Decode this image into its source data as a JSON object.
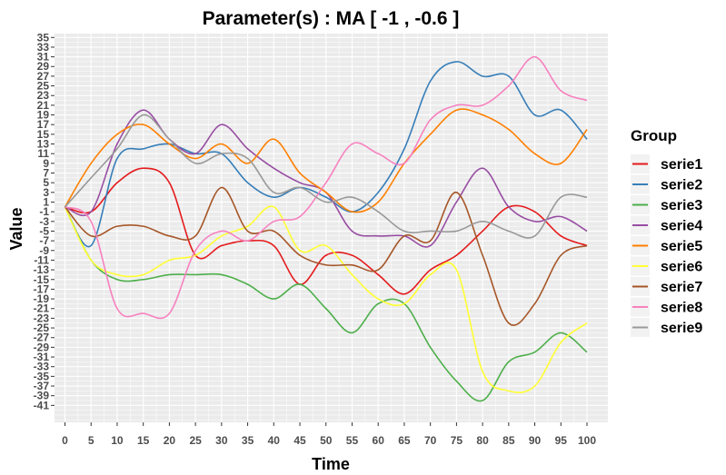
{
  "chart_data": {
    "type": "line",
    "title": "Parameter(s) :  MA [ -1 , -0.6 ]",
    "xlabel": "Time",
    "ylabel": "Value",
    "xlim": [
      -2,
      104
    ],
    "ylim": [
      -44.5,
      35.8
    ],
    "x_ticks": [
      0,
      5,
      10,
      15,
      20,
      25,
      30,
      35,
      40,
      45,
      50,
      55,
      60,
      65,
      70,
      75,
      80,
      85,
      90,
      95,
      100
    ],
    "y_ticks": [
      35,
      33,
      31,
      29,
      27,
      25,
      23,
      21,
      19,
      17,
      15,
      13,
      11,
      9,
      7,
      5,
      3,
      1,
      -1,
      -3,
      -5,
      -7,
      -9,
      -11,
      -13,
      -15,
      -17,
      -19,
      -21,
      -23,
      -25,
      -27,
      -29,
      -31,
      -33,
      -35,
      -37,
      -39,
      -41
    ],
    "grid": true,
    "legend": {
      "title": "Group",
      "position": "right"
    },
    "x": [
      0,
      5,
      10,
      15,
      20,
      25,
      30,
      35,
      40,
      45,
      50,
      55,
      60,
      65,
      70,
      75,
      80,
      85,
      90,
      95,
      100
    ],
    "series": [
      {
        "name": "serie1",
        "color": "#e41a1c",
        "values": [
          0,
          -1,
          5,
          8,
          5,
          -10,
          -8,
          -7,
          -8,
          -16,
          -10,
          -10,
          -14,
          -18,
          -13,
          -10,
          -5,
          0,
          -1,
          -6,
          -8
        ]
      },
      {
        "name": "serie2",
        "color": "#377eb8",
        "values": [
          0,
          -8,
          10,
          12,
          13,
          11,
          11,
          5,
          2,
          4,
          2,
          -1,
          3,
          12,
          26,
          30,
          27,
          27,
          19,
          20,
          14
        ]
      },
      {
        "name": "serie3",
        "color": "#4daf4a",
        "values": [
          0,
          -11,
          -15,
          -15,
          -14,
          -14,
          -14,
          -16,
          -19,
          -16,
          -21,
          -26,
          -20,
          -20,
          -29,
          -36,
          -40,
          -32,
          -30,
          -26,
          -30
        ]
      },
      {
        "name": "serie4",
        "color": "#984ea3",
        "values": [
          0,
          -1,
          13,
          20,
          14,
          11,
          17,
          12,
          8,
          5,
          3,
          -5,
          -6,
          -6,
          -8,
          1,
          8,
          0,
          -3,
          -2,
          -5
        ]
      },
      {
        "name": "serie5",
        "color": "#ff7f00",
        "values": [
          0,
          9,
          15,
          17,
          13,
          10,
          13,
          9,
          14,
          7,
          3,
          -1,
          1,
          9,
          15,
          20,
          19,
          16,
          11,
          9,
          16
        ]
      },
      {
        "name": "serie6",
        "color": "#ffff33",
        "values": [
          0,
          -11,
          -14,
          -14,
          -11,
          -10,
          -6,
          -4,
          0,
          -9,
          -8,
          -14,
          -19,
          -20,
          -14,
          -13,
          -34,
          -38,
          -37,
          -28,
          -24
        ]
      },
      {
        "name": "serie7",
        "color": "#a65628",
        "values": [
          0,
          -6,
          -4,
          -4,
          -6,
          -6,
          4,
          -5,
          -5,
          -10,
          -12,
          -12,
          -13,
          -6,
          -7,
          3,
          -10,
          -24,
          -20,
          -10,
          -8
        ]
      },
      {
        "name": "serie8",
        "color": "#f781bf",
        "values": [
          0,
          -3,
          -21,
          -22,
          -22,
          -9,
          -5,
          -7,
          -3,
          -2,
          5,
          13,
          11,
          9,
          18,
          21,
          21,
          25,
          31,
          24,
          22
        ]
      },
      {
        "name": "serie9",
        "color": "#999999",
        "values": [
          0,
          6,
          12,
          19,
          14,
          9,
          11,
          10,
          3,
          4,
          1,
          2,
          -1,
          -5,
          -5,
          -5,
          -3,
          -5,
          -6,
          2,
          2
        ]
      }
    ]
  }
}
